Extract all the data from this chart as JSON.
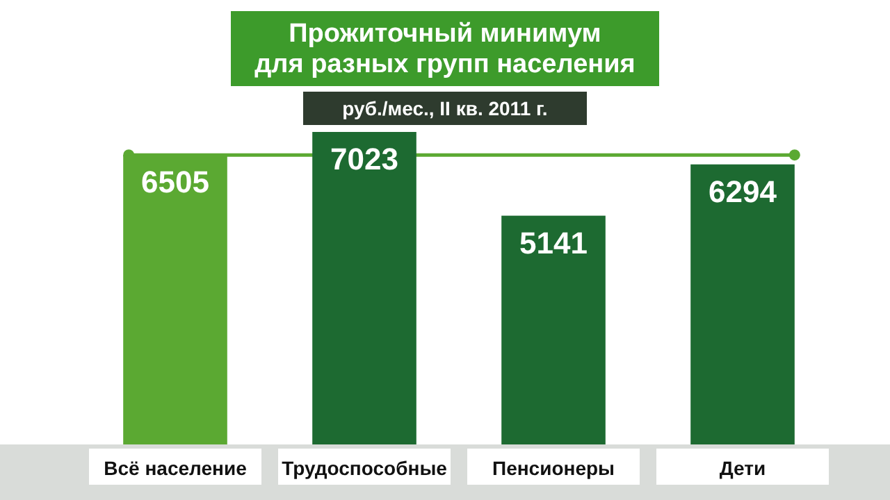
{
  "chart_data": {
    "type": "bar",
    "title": "Прожиточный минимум\nдля разных групп населения",
    "subtitle": "руб./мес., II кв. 2011 г.",
    "categories": [
      "Всё население",
      "Трудоспособные",
      "Пенсионеры",
      "Дети"
    ],
    "values": [
      6505,
      7023,
      5141,
      6294
    ],
    "colors": [
      "#5ba932",
      "#1d6a31",
      "#1d6a31",
      "#1d6a31"
    ],
    "data_labels": true,
    "ref_lines": [
      {
        "axis": "y",
        "value": 6505,
        "color": "#5ba932"
      }
    ]
  }
}
